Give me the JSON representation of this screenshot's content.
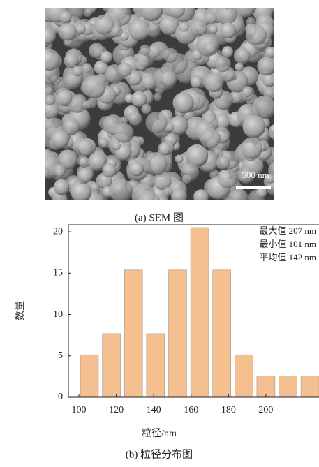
{
  "image": {
    "scale_bar": "500 nm",
    "caption": "(a) SEM 图"
  },
  "chart_data": {
    "type": "histogram",
    "bins": [
      99.7,
      111.5,
      123.3,
      135.1,
      146.9,
      158.7,
      170.5,
      182.3,
      194.1,
      205.9,
      217.7,
      229.5
    ],
    "values": [
      5.13,
      7.69,
      15.38,
      7.69,
      15.38,
      20.51,
      15.38,
      5.13,
      2.56,
      2.56,
      2.56
    ],
    "color": "#f5c08f",
    "xlim": [
      94.4,
      228.4
    ],
    "xticks": [
      100,
      120,
      140,
      160,
      180,
      200
    ],
    "ylim": [
      0,
      20.85
    ],
    "yticks": [
      0,
      5,
      10,
      15,
      20
    ],
    "xlabel": "粒径/nm",
    "ylabel": "数量",
    "annotations": [
      "最大值 207 nm",
      "最小值 101 nm",
      "平均值 142 nm"
    ],
    "caption": "(b) 粒径分布图"
  }
}
